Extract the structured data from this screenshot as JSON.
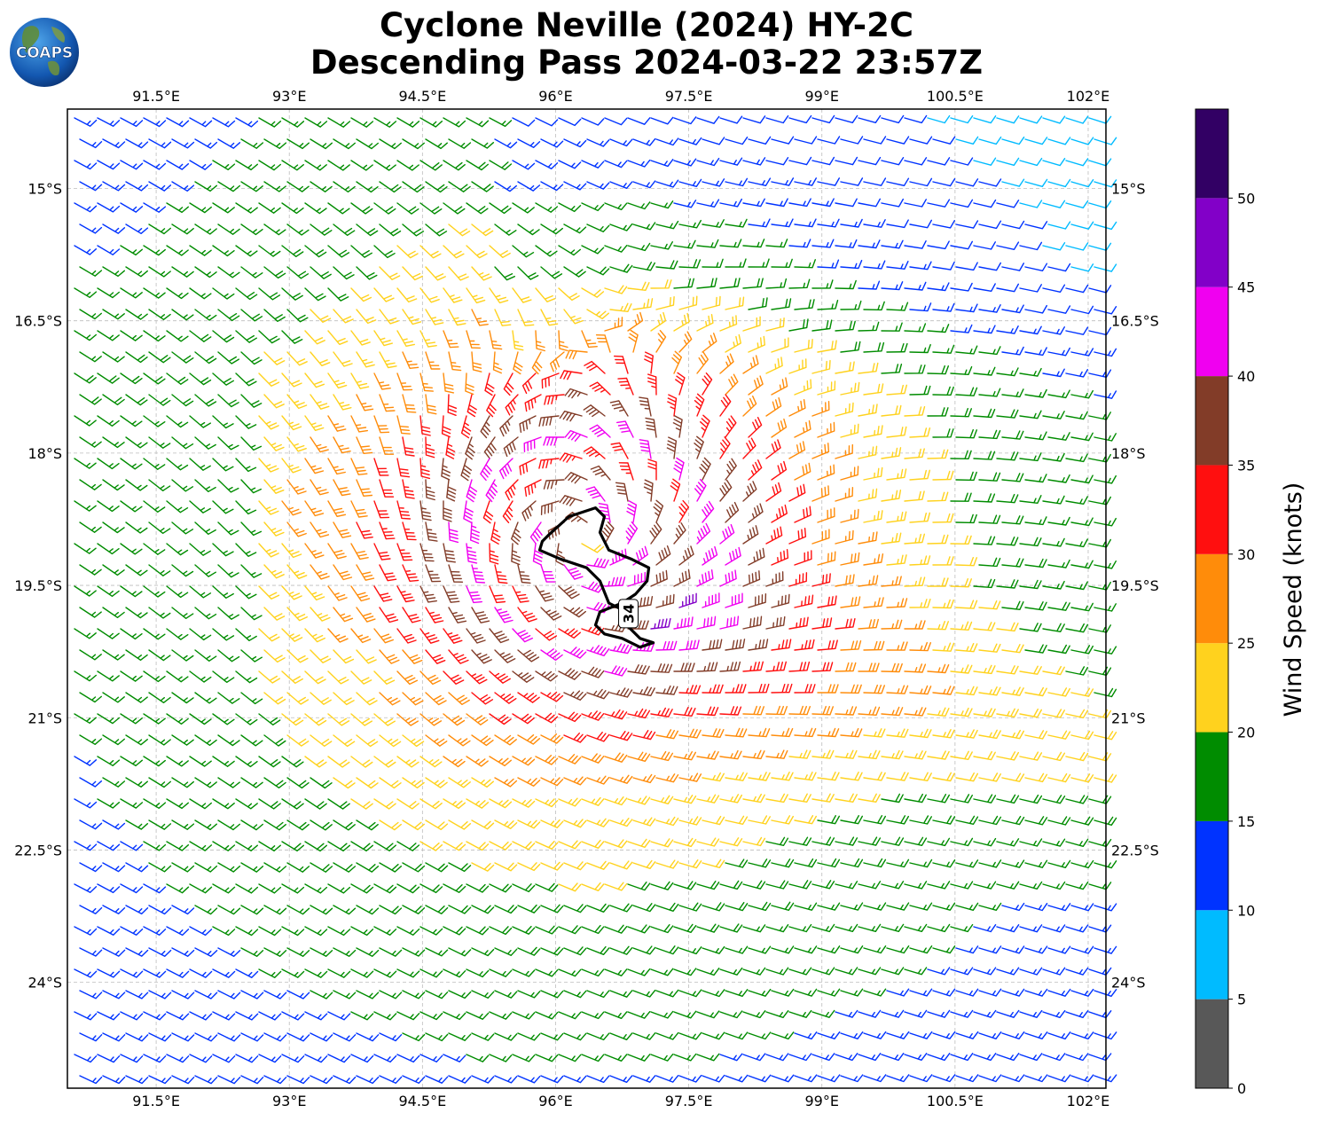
{
  "title": {
    "line1": "Cyclone Neville (2024) HY-2C",
    "line2": "Descending Pass 2024-03-22 23:57Z"
  },
  "logo": {
    "text": "COAPS",
    "icon": "globe-icon"
  },
  "map": {
    "lon_range": [
      90.5,
      102.2
    ],
    "lat_range": [
      -25.2,
      -14.1
    ],
    "x_ticks": [
      "91.5°E",
      "93°E",
      "94.5°E",
      "96°E",
      "97.5°E",
      "99°E",
      "100.5°E",
      "102°E"
    ],
    "x_tick_values": [
      91.5,
      93,
      94.5,
      96,
      97.5,
      99,
      100.5,
      102
    ],
    "y_ticks": [
      "15°S",
      "16.5°S",
      "18°S",
      "19.5°S",
      "21°S",
      "22.5°S",
      "24°S"
    ],
    "y_tick_values": [
      -15,
      -16.5,
      -18,
      -19.5,
      -21,
      -22.5,
      -24
    ],
    "grid": true,
    "grid_style": "dashed",
    "cyclone_center": [
      96.3,
      -19.0
    ],
    "contour": {
      "label": "34",
      "level_knots": 34
    },
    "background_flow": "easterly-to-southeasterly"
  },
  "colorbar": {
    "title": "Wind Speed (knots)",
    "tick_labels": [
      "0",
      "5",
      "10",
      "15",
      "20",
      "25",
      "30",
      "35",
      "40",
      "45",
      "50"
    ],
    "bins": [
      {
        "from": 0,
        "to": 5,
        "color": "#585858"
      },
      {
        "from": 5,
        "to": 10,
        "color": "#00bbff"
      },
      {
        "from": 10,
        "to": 15,
        "color": "#0033ff"
      },
      {
        "from": 15,
        "to": 20,
        "color": "#008c00"
      },
      {
        "from": 20,
        "to": 25,
        "color": "#ffd21e"
      },
      {
        "from": 25,
        "to": 30,
        "color": "#ff8c0a"
      },
      {
        "from": 30,
        "to": 35,
        "color": "#ff0f0f"
      },
      {
        "from": 35,
        "to": 40,
        "color": "#823c28"
      },
      {
        "from": 40,
        "to": 45,
        "color": "#f000f0"
      },
      {
        "from": 45,
        "to": 50,
        "color": "#8200c8"
      },
      {
        "from": 50,
        "to": 55,
        "color": "#320064"
      }
    ]
  }
}
